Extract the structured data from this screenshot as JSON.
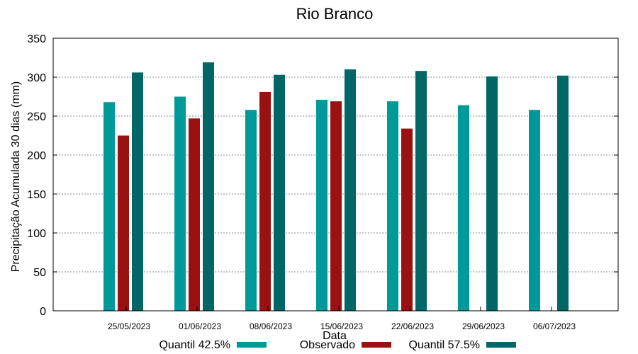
{
  "chart_data": {
    "type": "bar",
    "title": "Rio Branco",
    "xlabel": "Data",
    "ylabel": "Precipitação Acumulada 30 dias (mm)",
    "ylim": [
      0,
      350
    ],
    "yticks": [
      0,
      50,
      100,
      150,
      200,
      250,
      300,
      350
    ],
    "grid": true,
    "legend_position": "bottom",
    "categories": [
      "25/05/2023",
      "01/06/2023",
      "08/06/2023",
      "15/06/2023",
      "22/06/2023",
      "29/06/2023",
      "06/07/2023"
    ],
    "series": [
      {
        "name": "Quantil 42.5%",
        "color": "#009999",
        "values": [
          268,
          275,
          258,
          271,
          269,
          264,
          258
        ]
      },
      {
        "name": "Observado",
        "color": "#991111",
        "values": [
          225,
          247,
          281,
          269,
          234,
          null,
          null
        ]
      },
      {
        "name": "Quantil 57.5%",
        "color": "#006666",
        "values": [
          306,
          319,
          303,
          310,
          308,
          301,
          302
        ]
      }
    ]
  }
}
